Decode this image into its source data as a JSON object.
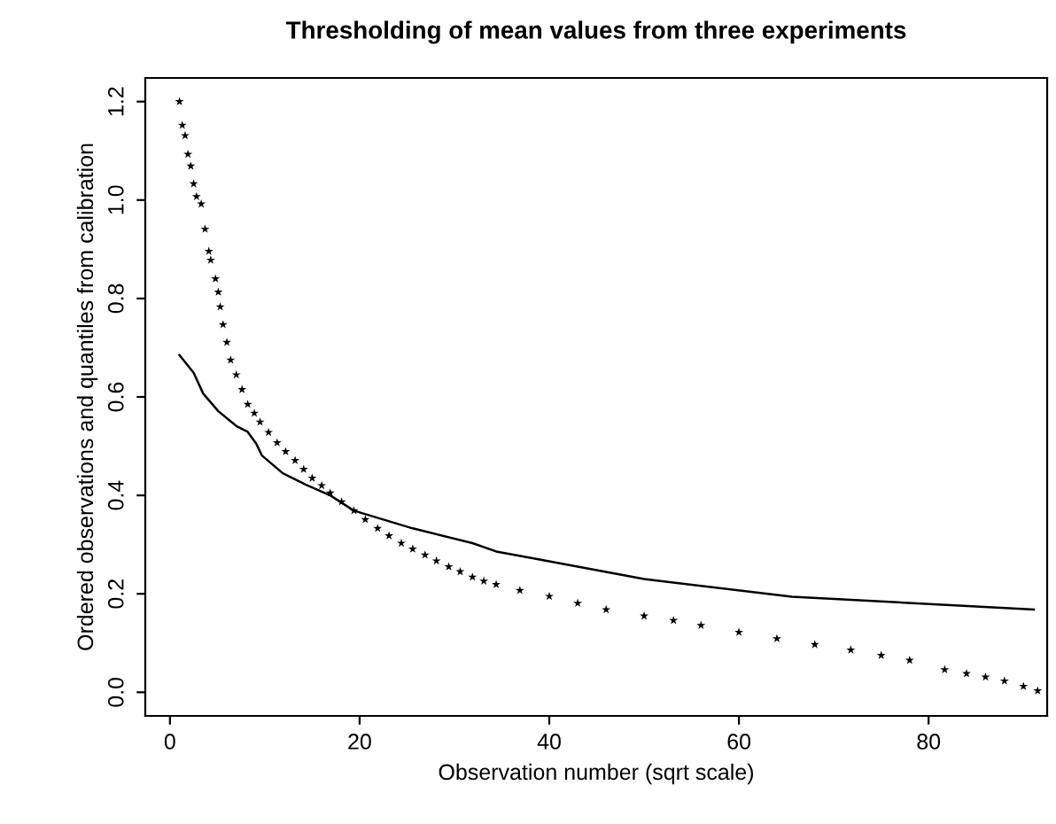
{
  "chart_data": {
    "type": "scatter",
    "title": "Thresholding of mean values from three experiments",
    "xlabel": "Observation number (sqrt scale)",
    "ylabel": "Ordered observations and quantiles from calibration",
    "xlim": [
      -2.6,
      92.5
    ],
    "ylim": [
      -0.048,
      1.248
    ],
    "xticks": [
      0,
      20,
      40,
      60,
      80
    ],
    "yticks": [
      {
        "value": 0,
        "label": "0.0"
      },
      0.2,
      0.4,
      0.6,
      0.8,
      {
        "value": 1,
        "label": "1.0"
      },
      1.2
    ],
    "grid": false,
    "legend": false,
    "series": [
      {
        "marker": "star",
        "color": "#000000",
        "x": [
          1,
          1.3,
          1.6,
          1.9,
          2.2,
          2.5,
          2.8,
          3.3,
          3.7,
          4.1,
          4.3,
          4.8,
          5.1,
          5.3,
          5.6,
          6.0,
          6.4,
          7.0,
          7.6,
          8.2,
          8.9,
          9.5,
          10.4,
          11.3,
          12.2,
          13.2,
          14.1,
          15.0,
          16.0,
          16.9,
          18.1,
          19.4,
          20.6,
          21.9,
          23.1,
          24.4,
          25.6,
          26.9,
          28.1,
          29.4,
          30.6,
          31.9,
          33.1,
          34.4,
          36.9,
          40,
          43,
          46,
          50,
          53.1,
          56,
          60,
          64,
          68,
          71.8,
          75,
          78,
          81.7,
          84,
          86,
          88,
          90,
          91.5
        ],
        "values": [
          1.2,
          1.152,
          1.131,
          1.093,
          1.069,
          1.033,
          1.007,
          0.992,
          0.941,
          0.896,
          0.878,
          0.84,
          0.813,
          0.783,
          0.747,
          0.711,
          0.675,
          0.645,
          0.615,
          0.585,
          0.567,
          0.549,
          0.528,
          0.507,
          0.489,
          0.471,
          0.453,
          0.435,
          0.42,
          0.405,
          0.387,
          0.369,
          0.351,
          0.333,
          0.318,
          0.303,
          0.291,
          0.279,
          0.267,
          0.255,
          0.245,
          0.234,
          0.226,
          0.219,
          0.207,
          0.195,
          0.181,
          0.168,
          0.155,
          0.146,
          0.136,
          0.122,
          0.109,
          0.097,
          0.086,
          0.075,
          0.065,
          0.046,
          0.038,
          0.031,
          0.023,
          0.012,
          0.003
        ]
      },
      {
        "type": "line",
        "marker": "none",
        "line_style": "solid",
        "color": "#000000",
        "x": [
          1,
          2.5,
          3.5,
          5.1,
          7.0,
          8.2,
          9.1,
          9.7,
          11.9,
          14.4,
          16.9,
          19.4,
          22.5,
          25.6,
          31.9,
          34.4,
          38.1,
          50,
          65.6,
          91.1
        ],
        "values": [
          0.685,
          0.649,
          0.607,
          0.571,
          0.541,
          0.529,
          0.505,
          0.481,
          0.445,
          0.421,
          0.4,
          0.369,
          0.351,
          0.333,
          0.303,
          0.286,
          0.273,
          0.23,
          0.194,
          0.168
        ]
      }
    ]
  }
}
